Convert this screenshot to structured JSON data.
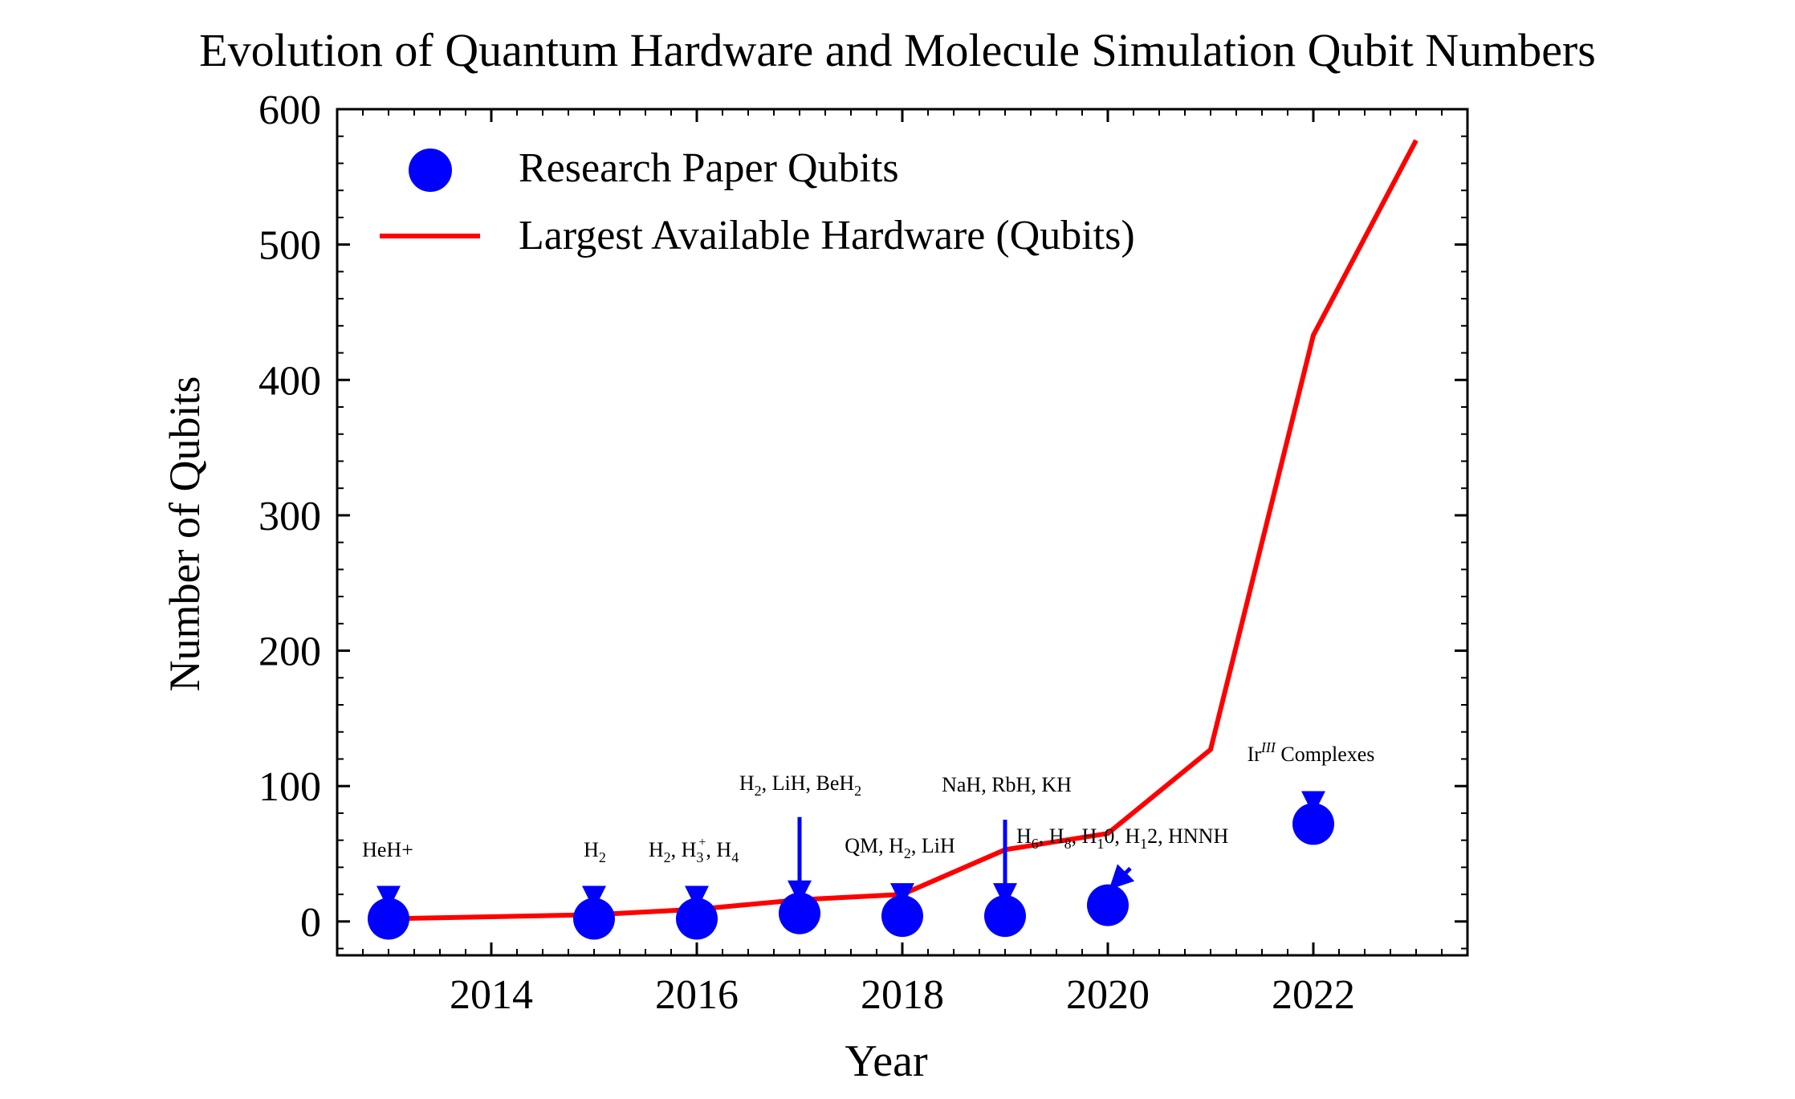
{
  "chart_data": {
    "type": "line+scatter",
    "title": "Evolution of Quantum Hardware and Molecule Simulation Qubit Numbers",
    "xlabel": "Year",
    "ylabel": "Number of Qubits",
    "xlim": [
      2012.5,
      2023.5
    ],
    "ylim": [
      -25,
      600
    ],
    "x_ticks": [
      2014,
      2016,
      2018,
      2020,
      2022
    ],
    "y_ticks": [
      0,
      100,
      200,
      300,
      400,
      500,
      600
    ],
    "legend": {
      "position": "top-left",
      "entries": [
        "Research Paper Qubits",
        "Largest Available Hardware (Qubits)"
      ]
    },
    "series": [
      {
        "name": "Largest Available Hardware (Qubits)",
        "kind": "line",
        "color": "#ff0000",
        "x": [
          2013,
          2015,
          2016,
          2017,
          2018,
          2019,
          2020,
          2021,
          2022,
          2023
        ],
        "y": [
          2,
          5,
          9,
          16,
          20,
          53,
          65,
          127,
          433,
          577
        ]
      },
      {
        "name": "Research Paper Qubits",
        "kind": "scatter",
        "color": "#0000ff",
        "points": [
          {
            "x": 2013,
            "y": 2,
            "label": "HeH+",
            "arrow": "short"
          },
          {
            "x": 2015,
            "y": 2,
            "label": "H2",
            "arrow": "short"
          },
          {
            "x": 2016,
            "y": 2,
            "label": "H2, H3+, H4",
            "arrow": "short"
          },
          {
            "x": 2017,
            "y": 6,
            "label": "H2, LiH, BeH2",
            "arrow": "long"
          },
          {
            "x": 2018,
            "y": 4,
            "label": "QM, H2, LiH",
            "arrow": "short"
          },
          {
            "x": 2019,
            "y": 4,
            "label": "NaH, RbH, KH",
            "arrow": "long"
          },
          {
            "x": 2020,
            "y": 12,
            "label": "H6, H8, H10, H12, HNNH",
            "arrow": "diag"
          },
          {
            "x": 2022,
            "y": 72,
            "label": "IrIII Complexes",
            "arrow": "short"
          }
        ]
      }
    ],
    "annotations": {
      "heh": "HeH+",
      "h2": "H2",
      "h2h3h4": "H2, H3+, H4",
      "h2lihbeh2": "H2, LiH, BeH2",
      "qmh2lih": "QM, H2, LiH",
      "nahrbhkh": "NaH, RbH, KH",
      "hchain": "H6, H8, H10, H12, HNNH",
      "ir": "IrIII Complexes"
    }
  }
}
